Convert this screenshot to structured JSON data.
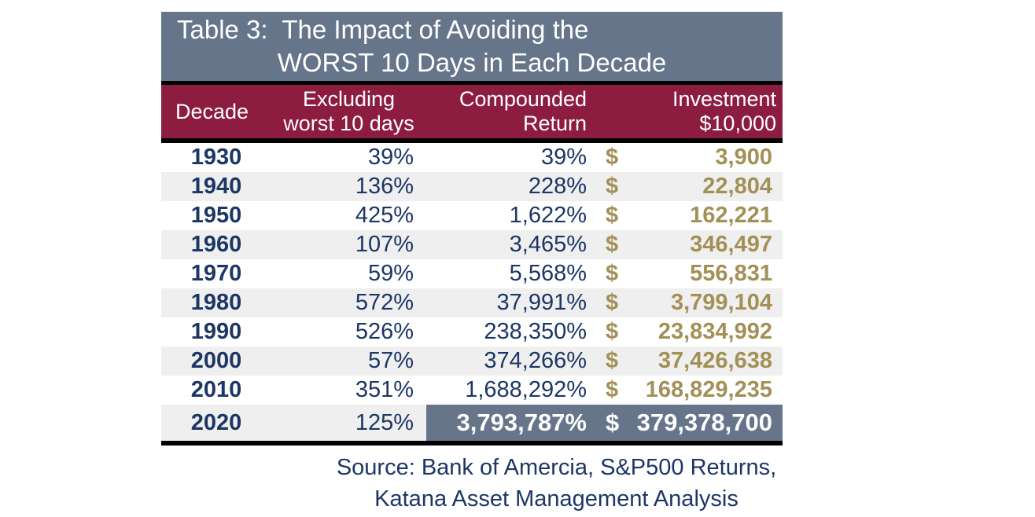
{
  "colors": {
    "banner_bg": "#66758a",
    "header_bg": "#8c1d40",
    "navy": "#1c3665",
    "gold": "#a39057",
    "stripe": "#efefef",
    "highlight_bg": "#66758a",
    "border": "#000000"
  },
  "title": {
    "line1": "Table 3:  The Impact of Avoiding the",
    "line2": "WORST 10 Days in Each Decade"
  },
  "table": {
    "header": {
      "decade": "Decade",
      "excluding_line1": "Excluding",
      "excluding_line2": "worst 10 days",
      "compounded_line1": "Compounded",
      "compounded_line2": "Return",
      "investment_line1": "Investment",
      "investment_line2": "$10,000"
    },
    "rows": [
      {
        "decade": "1930",
        "excluding": "39%",
        "compounded": "39%",
        "currency": "$",
        "investment": "3,900",
        "highlight": false
      },
      {
        "decade": "1940",
        "excluding": "136%",
        "compounded": "228%",
        "currency": "$",
        "investment": "22,804",
        "highlight": false
      },
      {
        "decade": "1950",
        "excluding": "425%",
        "compounded": "1,622%",
        "currency": "$",
        "investment": "162,221",
        "highlight": false
      },
      {
        "decade": "1960",
        "excluding": "107%",
        "compounded": "3,465%",
        "currency": "$",
        "investment": "346,497",
        "highlight": false
      },
      {
        "decade": "1970",
        "excluding": "59%",
        "compounded": "5,568%",
        "currency": "$",
        "investment": "556,831",
        "highlight": false
      },
      {
        "decade": "1980",
        "excluding": "572%",
        "compounded": "37,991%",
        "currency": "$",
        "investment": "3,799,104",
        "highlight": false
      },
      {
        "decade": "1990",
        "excluding": "526%",
        "compounded": "238,350%",
        "currency": "$",
        "investment": "23,834,992",
        "highlight": false
      },
      {
        "decade": "2000",
        "excluding": "57%",
        "compounded": "374,266%",
        "currency": "$",
        "investment": "37,426,638",
        "highlight": false
      },
      {
        "decade": "2010",
        "excluding": "351%",
        "compounded": "1,688,292%",
        "currency": "$",
        "investment": "168,829,235",
        "highlight": false
      },
      {
        "decade": "2020",
        "excluding": "125%",
        "compounded": "3,793,787%",
        "currency": "$",
        "investment": "379,378,700",
        "highlight": true
      }
    ]
  },
  "source": {
    "line1": "Source: Bank of Amercia, S&P500 Returns,",
    "line2": "Katana Asset Management Analysis"
  },
  "chart_data": {
    "type": "table",
    "title": "Table 3: The Impact of Avoiding the WORST 10 Days in Each Decade",
    "columns": [
      "Decade",
      "Excluding worst 10 days",
      "Compounded Return",
      "Investment $10,000"
    ],
    "rows": [
      [
        "1930",
        "39%",
        "39%",
        "$3,900"
      ],
      [
        "1940",
        "136%",
        "228%",
        "$22,804"
      ],
      [
        "1950",
        "425%",
        "1,622%",
        "$162,221"
      ],
      [
        "1960",
        "107%",
        "3,465%",
        "$346,497"
      ],
      [
        "1970",
        "59%",
        "5,568%",
        "$556,831"
      ],
      [
        "1980",
        "572%",
        "37,991%",
        "$3,799,104"
      ],
      [
        "1990",
        "526%",
        "238,350%",
        "$23,834,992"
      ],
      [
        "2000",
        "57%",
        "374,266%",
        "$37,426,638"
      ],
      [
        "2010",
        "351%",
        "1,688,292%",
        "$168,829,235"
      ],
      [
        "2020",
        "125%",
        "3,793,787%",
        "$379,378,700"
      ]
    ],
    "highlighted_row": "2020",
    "source": "Source: Bank of Amercia, S&P500 Returns, Katana Asset Management Analysis",
    "layout": {
      "row_striping": true,
      "stripe_color": "#efefef",
      "header_bg": "#8c1d40",
      "title_bg": "#66758a",
      "value_color": "#1c3665",
      "investment_color": "#a39057"
    }
  }
}
